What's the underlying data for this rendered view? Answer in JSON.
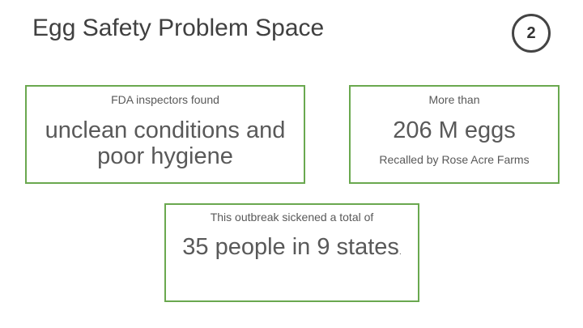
{
  "slide": {
    "title": "Egg Safety Problem Space",
    "page_number": "2"
  },
  "cards": {
    "inspection": {
      "intro": "FDA inspectors found",
      "headline": "unclean conditions and poor hygiene"
    },
    "recall": {
      "intro": "More than",
      "headline": "206 M eggs",
      "caption": "Recalled by Rose Acre Farms"
    },
    "outbreak": {
      "intro": "This outbreak sickened a total of",
      "headline": "35 people in 9 states",
      "trailing": "."
    }
  },
  "colors": {
    "card_border": "#6aa84f",
    "title_text": "#404040",
    "body_text": "#595959"
  }
}
